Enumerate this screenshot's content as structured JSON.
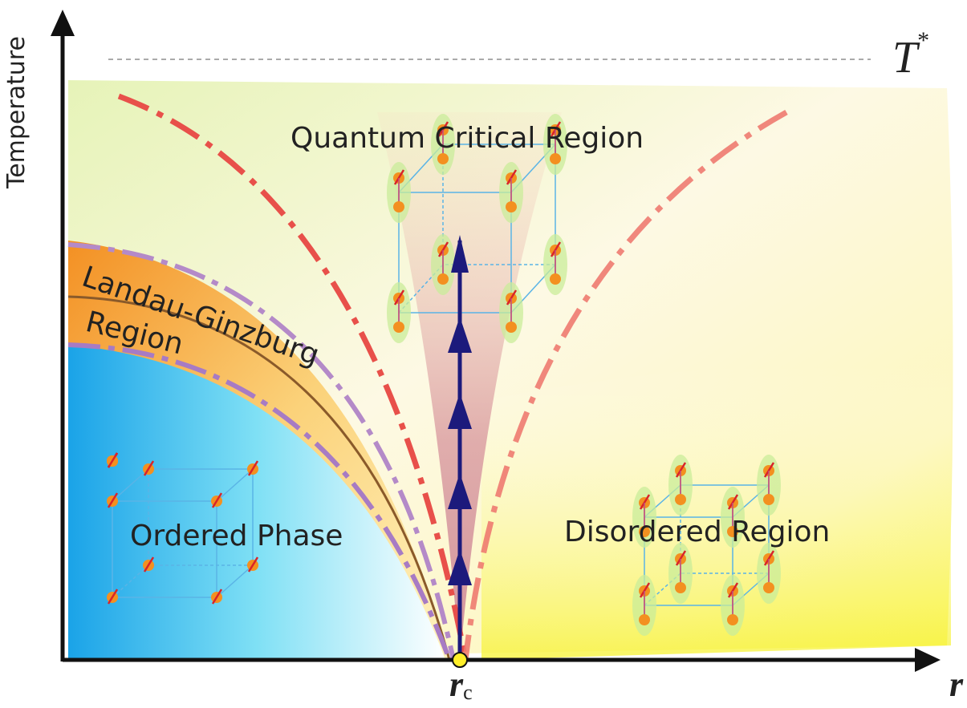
{
  "axes": {
    "y_label": "Temperature",
    "x_label": "r",
    "critical_point": {
      "base": "r",
      "sub": "c"
    },
    "top_marker": {
      "base": "T",
      "sup": "*"
    }
  },
  "regions": {
    "quantum_critical": "Quantum Critical Region",
    "landau_ginzburg": [
      "Landau-Ginzburg",
      "Region"
    ],
    "ordered": "Ordered Phase",
    "disordered": "Disordered Region"
  }
}
